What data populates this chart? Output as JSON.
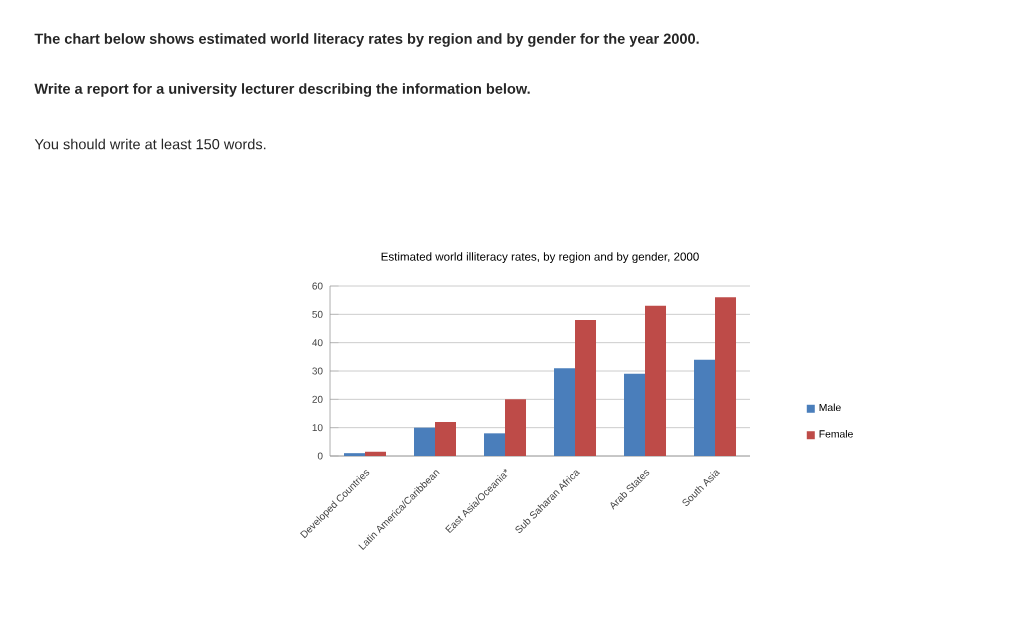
{
  "chart_data": {
    "type": "bar",
    "title": "Estimated world illiteracy rates, by region and by gender, 2000",
    "annotations": [
      "**The chart below shows estimated world literacy rates by region and by gender for the year 2000.**",
      "**Write a report for a university lecturer describing the information below.**",
      "You should write at least 150 words."
    ],
    "categories": [
      "Developed Countries",
      "Latin America/Caribbean",
      "East Asia/Oceania*",
      "Sub Saharan Africa",
      "Arab States",
      "South Asia"
    ],
    "series": [
      {
        "name": "Male",
        "color": "#4a7ebb",
        "values": [
          1,
          10,
          8,
          31,
          29,
          34
        ]
      },
      {
        "name": "Female",
        "color": "#be4b48",
        "values": [
          1.5,
          12,
          20,
          48,
          53,
          56
        ]
      }
    ],
    "ylim": [
      0,
      60
    ],
    "yticks": [
      0,
      10,
      20,
      30,
      40,
      50,
      60
    ],
    "grid": "y",
    "legend": "right"
  }
}
